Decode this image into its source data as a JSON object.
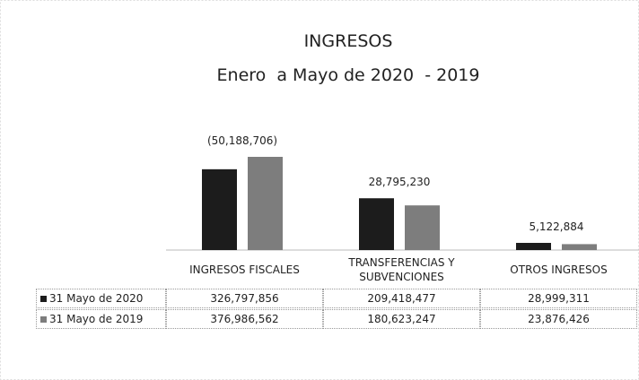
{
  "chart_data": {
    "type": "bar",
    "title": "INGRESOS",
    "subtitle": "Enero  a Mayo de 2020  - 2019",
    "categories": [
      "INGRESOS FISCALES",
      "TRANSFERENCIAS Y SUBVENCIONES",
      "OTROS INGRESOS"
    ],
    "series": [
      {
        "name": "31 Mayo de 2020",
        "color": "#1c1c1c",
        "values": [
          326797856,
          209418477,
          28999311
        ],
        "value_labels": [
          "326,797,856",
          "209,418,477",
          "28,999,311"
        ]
      },
      {
        "name": "31 Mayo de 2019",
        "color": "#7d7d7d",
        "values": [
          376986562,
          180623247,
          23876426
        ],
        "value_labels": [
          "376,986,562",
          "180,623,247",
          "23,876,426"
        ]
      }
    ],
    "annotations": [
      "(50,188,706)",
      "28,795,230",
      "5,122,884"
    ]
  }
}
